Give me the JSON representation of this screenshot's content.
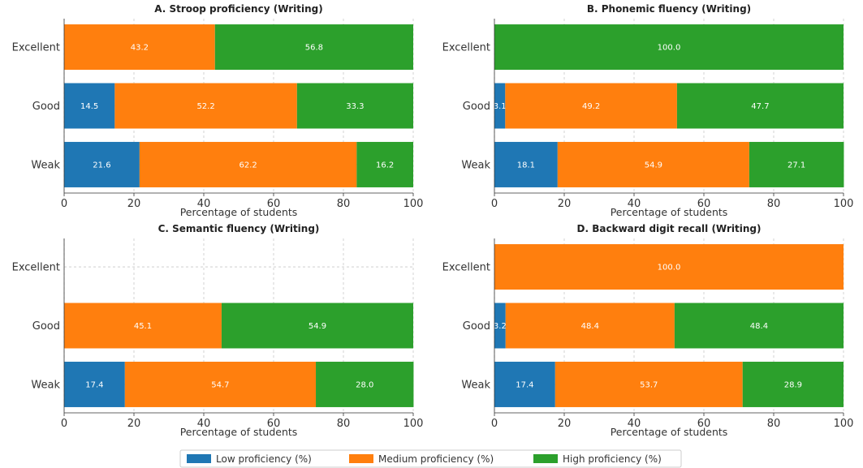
{
  "legend": {
    "items": [
      {
        "label": "Low proficiency (%)",
        "color": "#1f77b4"
      },
      {
        "label": "Medium proficiency (%)",
        "color": "#ff7f0e"
      },
      {
        "label": "High proficiency (%)",
        "color": "#2ca02c"
      }
    ],
    "placement": "bottom-center"
  },
  "chart_data": [
    {
      "type": "bar",
      "orientation": "horizontal",
      "stacked": true,
      "title": "A. Stroop proficiency (Writing)",
      "xlabel": "Percentage of students",
      "ylabel": "",
      "xlim": [
        0,
        100
      ],
      "xticks": [
        0,
        20,
        40,
        60,
        80,
        100
      ],
      "grid": true,
      "categories": [
        "Excellent",
        "Good",
        "Weak"
      ],
      "series": [
        {
          "name": "Low proficiency (%)",
          "values": [
            0,
            14.5,
            21.6
          ]
        },
        {
          "name": "Medium proficiency (%)",
          "values": [
            43.2,
            52.2,
            62.2
          ]
        },
        {
          "name": "High proficiency (%)",
          "values": [
            56.8,
            33.3,
            16.2
          ]
        }
      ]
    },
    {
      "type": "bar",
      "orientation": "horizontal",
      "stacked": true,
      "title": "B. Phonemic fluency (Writing)",
      "xlabel": "Percentage of students",
      "ylabel": "",
      "xlim": [
        0,
        100
      ],
      "xticks": [
        0,
        20,
        40,
        60,
        80,
        100
      ],
      "grid": true,
      "categories": [
        "Excellent",
        "Good",
        "Weak"
      ],
      "series": [
        {
          "name": "Low proficiency (%)",
          "values": [
            0,
            3.1,
            18.1
          ]
        },
        {
          "name": "Medium proficiency (%)",
          "values": [
            0,
            49.2,
            54.9
          ]
        },
        {
          "name": "High proficiency (%)",
          "values": [
            100.0,
            47.7,
            27.1
          ]
        }
      ]
    },
    {
      "type": "bar",
      "orientation": "horizontal",
      "stacked": true,
      "title": "C. Semantic fluency (Writing)",
      "xlabel": "Percentage of students",
      "ylabel": "",
      "xlim": [
        0,
        100
      ],
      "xticks": [
        0,
        20,
        40,
        60,
        80,
        100
      ],
      "grid": true,
      "categories": [
        "Excellent",
        "Good",
        "Weak"
      ],
      "series": [
        {
          "name": "Low proficiency (%)",
          "values": [
            0,
            0,
            17.4
          ]
        },
        {
          "name": "Medium proficiency (%)",
          "values": [
            0,
            45.1,
            54.7
          ]
        },
        {
          "name": "High proficiency (%)",
          "values": [
            0,
            54.9,
            28.0
          ]
        }
      ]
    },
    {
      "type": "bar",
      "orientation": "horizontal",
      "stacked": true,
      "title": "D. Backward digit recall (Writing)",
      "xlabel": "Percentage of students",
      "ylabel": "",
      "xlim": [
        0,
        100
      ],
      "xticks": [
        0,
        20,
        40,
        60,
        80,
        100
      ],
      "grid": true,
      "categories": [
        "Excellent",
        "Good",
        "Weak"
      ],
      "series": [
        {
          "name": "Low proficiency (%)",
          "values": [
            0,
            3.2,
            17.4
          ]
        },
        {
          "name": "Medium proficiency (%)",
          "values": [
            100.0,
            48.4,
            53.7
          ]
        },
        {
          "name": "High proficiency (%)",
          "values": [
            0,
            48.4,
            28.9
          ]
        }
      ]
    }
  ]
}
